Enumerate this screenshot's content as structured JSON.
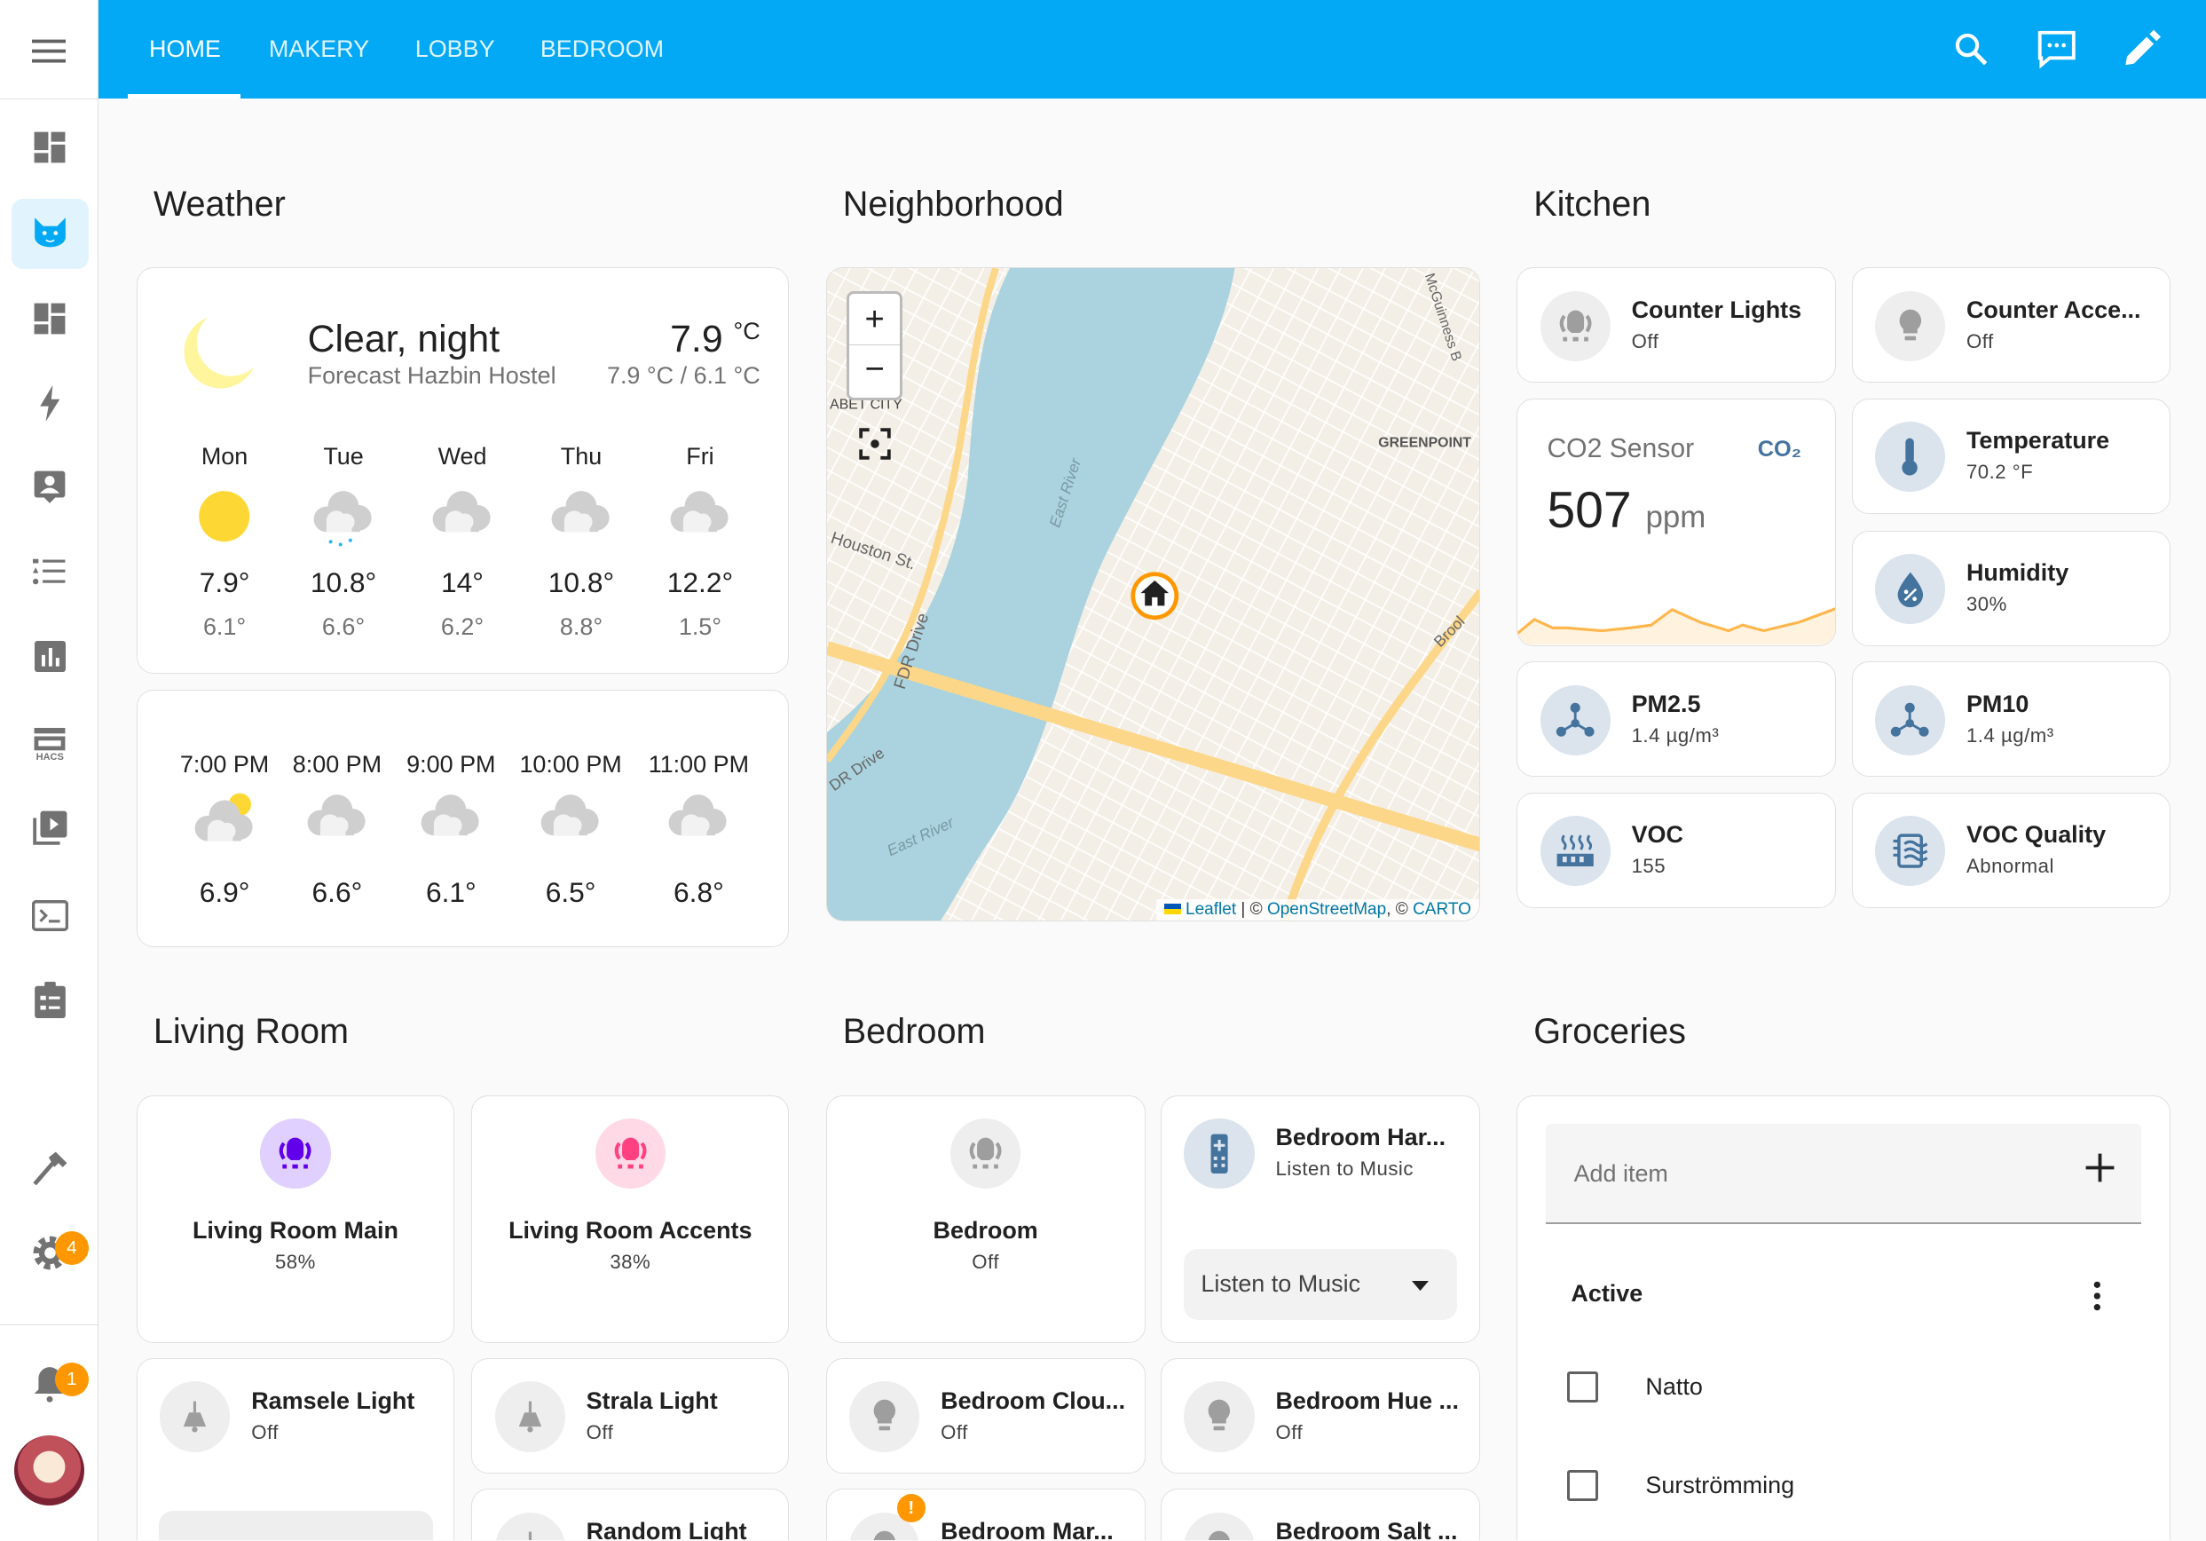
{
  "header": {
    "tabs": [
      {
        "label": "HOME",
        "active": true
      },
      {
        "label": "MAKERY"
      },
      {
        "label": "LOBBY"
      },
      {
        "label": "BEDROOM"
      }
    ],
    "icons": [
      "search-icon",
      "chat-icon",
      "pencil-icon"
    ],
    "color": "#03a9f4"
  },
  "sidebar": {
    "items": [
      "dashboard-icon",
      "cat-icon",
      "dashboard-icon",
      "lightning-icon",
      "account-box-icon",
      "list-icon",
      "chart-icon",
      "hacs-icon",
      "media-icon",
      "terminal-icon",
      "clipboard-icon",
      "hammer-icon",
      "gear-icon"
    ],
    "hacs_label": "HACS",
    "settings_badge": "4",
    "notifications_badge": "1"
  },
  "weather": {
    "title": "Weather",
    "condition": "Clear, night",
    "location": "Forecast Hazbin Hostel",
    "temp": "7.9",
    "unit": "°C",
    "hilo": "7.9 °C / 6.1 °C",
    "daily": [
      {
        "day": "Mon",
        "hi": "7.9°",
        "lo": "6.1°",
        "icon": "sunny"
      },
      {
        "day": "Tue",
        "hi": "10.8°",
        "lo": "6.6°",
        "icon": "rainy"
      },
      {
        "day": "Wed",
        "hi": "14°",
        "lo": "6.2°",
        "icon": "cloudy"
      },
      {
        "day": "Thu",
        "hi": "10.8°",
        "lo": "8.8°",
        "icon": "cloudy"
      },
      {
        "day": "Fri",
        "hi": "12.2°",
        "lo": "1.5°",
        "icon": "cloudy"
      }
    ],
    "hourly": [
      {
        "time": "7:00 PM",
        "temp": "6.9°",
        "icon": "partly-cloudy"
      },
      {
        "time": "8:00 PM",
        "temp": "6.6°",
        "icon": "cloudy"
      },
      {
        "time": "9:00 PM",
        "temp": "6.1°",
        "icon": "cloudy"
      },
      {
        "time": "10:00 PM",
        "temp": "6.5°",
        "icon": "cloudy"
      },
      {
        "time": "11:00 PM",
        "temp": "6.8°",
        "icon": "cloudy"
      }
    ]
  },
  "neighborhood": {
    "title": "Neighborhood",
    "labels": [
      "ABET CITY",
      "GREENPOINT",
      "Houston St.",
      "FDR Drive",
      "East River",
      "DR Drive",
      "East River",
      "McGuinness B",
      "Brool"
    ],
    "attribution": {
      "leaflet": "Leaflet",
      "sep1": " | © ",
      "osm": "OpenStreetMap",
      "sep2": ", © ",
      "carto": "CARTO"
    }
  },
  "kitchen": {
    "title": "Kitchen",
    "tiles": [
      {
        "name": "Counter Lights",
        "state": "Off"
      },
      {
        "name": "Counter Acce...",
        "state": "Off"
      },
      {
        "name": "Temperature",
        "state": "70.2 °F"
      },
      {
        "name": "Humidity",
        "state": "30%"
      },
      {
        "name": "PM2.5",
        "state": "1.4 µg/m³"
      },
      {
        "name": "PM10",
        "state": "1.4 µg/m³"
      },
      {
        "name": "VOC",
        "state": "155"
      },
      {
        "name": "VOC Quality",
        "state": "Abnormal"
      }
    ],
    "co2": {
      "name": "CO2 Sensor",
      "value": "507",
      "unit": "ppm",
      "icon_label": "CO₂",
      "color": "#ffb74d"
    }
  },
  "living_room": {
    "title": "Living Room",
    "tiles": [
      {
        "name": "Living Room Main",
        "state": "58%",
        "color": "#6200ea"
      },
      {
        "name": "Living Room Accents",
        "state": "38%",
        "color": "#ff4081"
      },
      {
        "name": "Ramsele Light",
        "state": "Off"
      },
      {
        "name": "Strala Light",
        "state": "Off"
      },
      {
        "name": "Random Light"
      }
    ]
  },
  "bedroom": {
    "title": "Bedroom",
    "tiles": [
      {
        "name": "Bedroom",
        "state": "Off"
      },
      {
        "name": "Bedroom Har...",
        "state": "Listen to Music"
      },
      {
        "name": "Bedroom Clou...",
        "state": "Off"
      },
      {
        "name": "Bedroom Hue ...",
        "state": "Off"
      },
      {
        "name": "Bedroom Mar..."
      },
      {
        "name": "Bedroom Salt ..."
      }
    ],
    "select_value": "Listen to Music"
  },
  "groceries": {
    "title": "Groceries",
    "add_placeholder": "Add item",
    "active_label": "Active",
    "items": [
      {
        "name": "Natto",
        "checked": false
      },
      {
        "name": "Surströmming",
        "checked": false
      }
    ]
  }
}
